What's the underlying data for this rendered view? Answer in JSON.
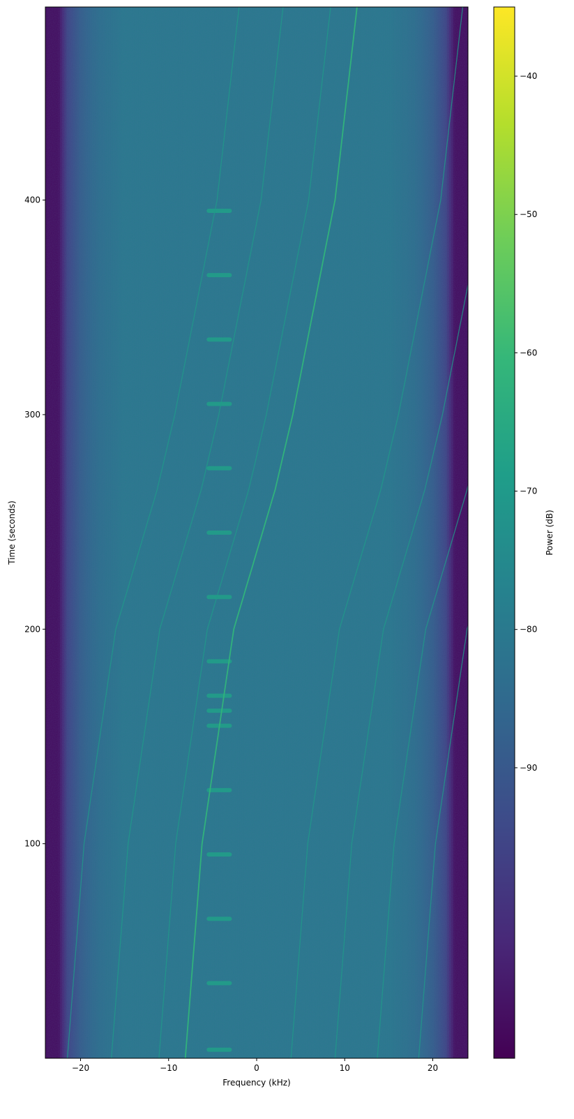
{
  "chart_data": {
    "type": "heatmap",
    "title": "",
    "xlabel": "Frequency (kHz)",
    "ylabel": "Time (seconds)",
    "xlim": [
      -24,
      24
    ],
    "ylim": [
      0,
      490
    ],
    "xticks": [
      -20,
      -10,
      0,
      10,
      20
    ],
    "xtick_labels": [
      "−20",
      "−10",
      "0",
      "10",
      "20"
    ],
    "yticks": [
      100,
      200,
      300,
      400
    ],
    "ytick_labels": [
      "100",
      "200",
      "300",
      "400"
    ],
    "colormap": "viridis",
    "colorbar": {
      "label": "Power (dB)",
      "range": [
        -111,
        -35
      ],
      "ticks": [
        -40,
        -50,
        -60,
        -70,
        -80,
        -90
      ],
      "tick_labels": [
        "−40",
        "−50",
        "−60",
        "−70",
        "−80",
        "−90"
      ]
    },
    "noise_floor_profile": {
      "frequency_khz": [
        -24,
        -22.5,
        -21.5,
        -20,
        -18,
        -15,
        15,
        18,
        20,
        21.5,
        22.5,
        24
      ],
      "power_db": [
        -108,
        -108,
        -95,
        -88,
        -83,
        -80,
        -80,
        -83,
        -88,
        -95,
        -108,
        -108
      ]
    },
    "main_track": {
      "time_s": [
        0,
        100,
        200,
        265,
        300,
        400,
        490
      ],
      "frequency_khz": [
        -8.1,
        -6.2,
        -2.6,
        2.1,
        4.1,
        8.9,
        11.4
      ],
      "power_db": -62
    },
    "parallel_track_offsets_khz": [
      -13.4,
      -8.4,
      -3.0,
      12.0,
      17.0,
      21.8,
      26.5
    ],
    "parallel_track_power_db": -70,
    "bursts": {
      "frequency_range_khz": [
        -6,
        -2.5
      ],
      "time_s": [
        4,
        35,
        65,
        95,
        125,
        155,
        162,
        169,
        185,
        215,
        245,
        275,
        305,
        335,
        365,
        395
      ],
      "power_db": -68
    }
  }
}
